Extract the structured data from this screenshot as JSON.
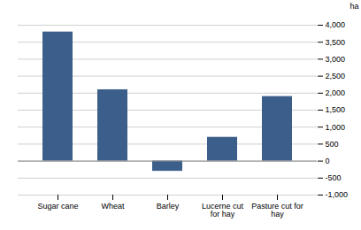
{
  "chart_data": {
    "type": "bar",
    "categories": [
      "Sugar cane",
      "Wheat",
      "Barley",
      "Lucerne cut\nfor hay",
      "Pasture cut for\nhay"
    ],
    "values": [
      3800,
      2100,
      -300,
      700,
      1900
    ],
    "color": "#3B5F8A",
    "ylabel": "ha",
    "ylim": [
      -1000,
      4000
    ],
    "yticks": [
      {
        "value": -1000,
        "label": "-1,000"
      },
      -500,
      0,
      500,
      {
        "value": 1000,
        "label": "1,000"
      },
      {
        "value": 1500,
        "label": "1,500"
      },
      {
        "value": 2000,
        "label": "2,000"
      },
      {
        "value": 2500,
        "label": "2,500"
      },
      {
        "value": 3000,
        "label": "3,000"
      },
      {
        "value": 3500,
        "label": "3,500"
      },
      {
        "value": 4000,
        "label": "4,000"
      }
    ],
    "grid": true
  }
}
